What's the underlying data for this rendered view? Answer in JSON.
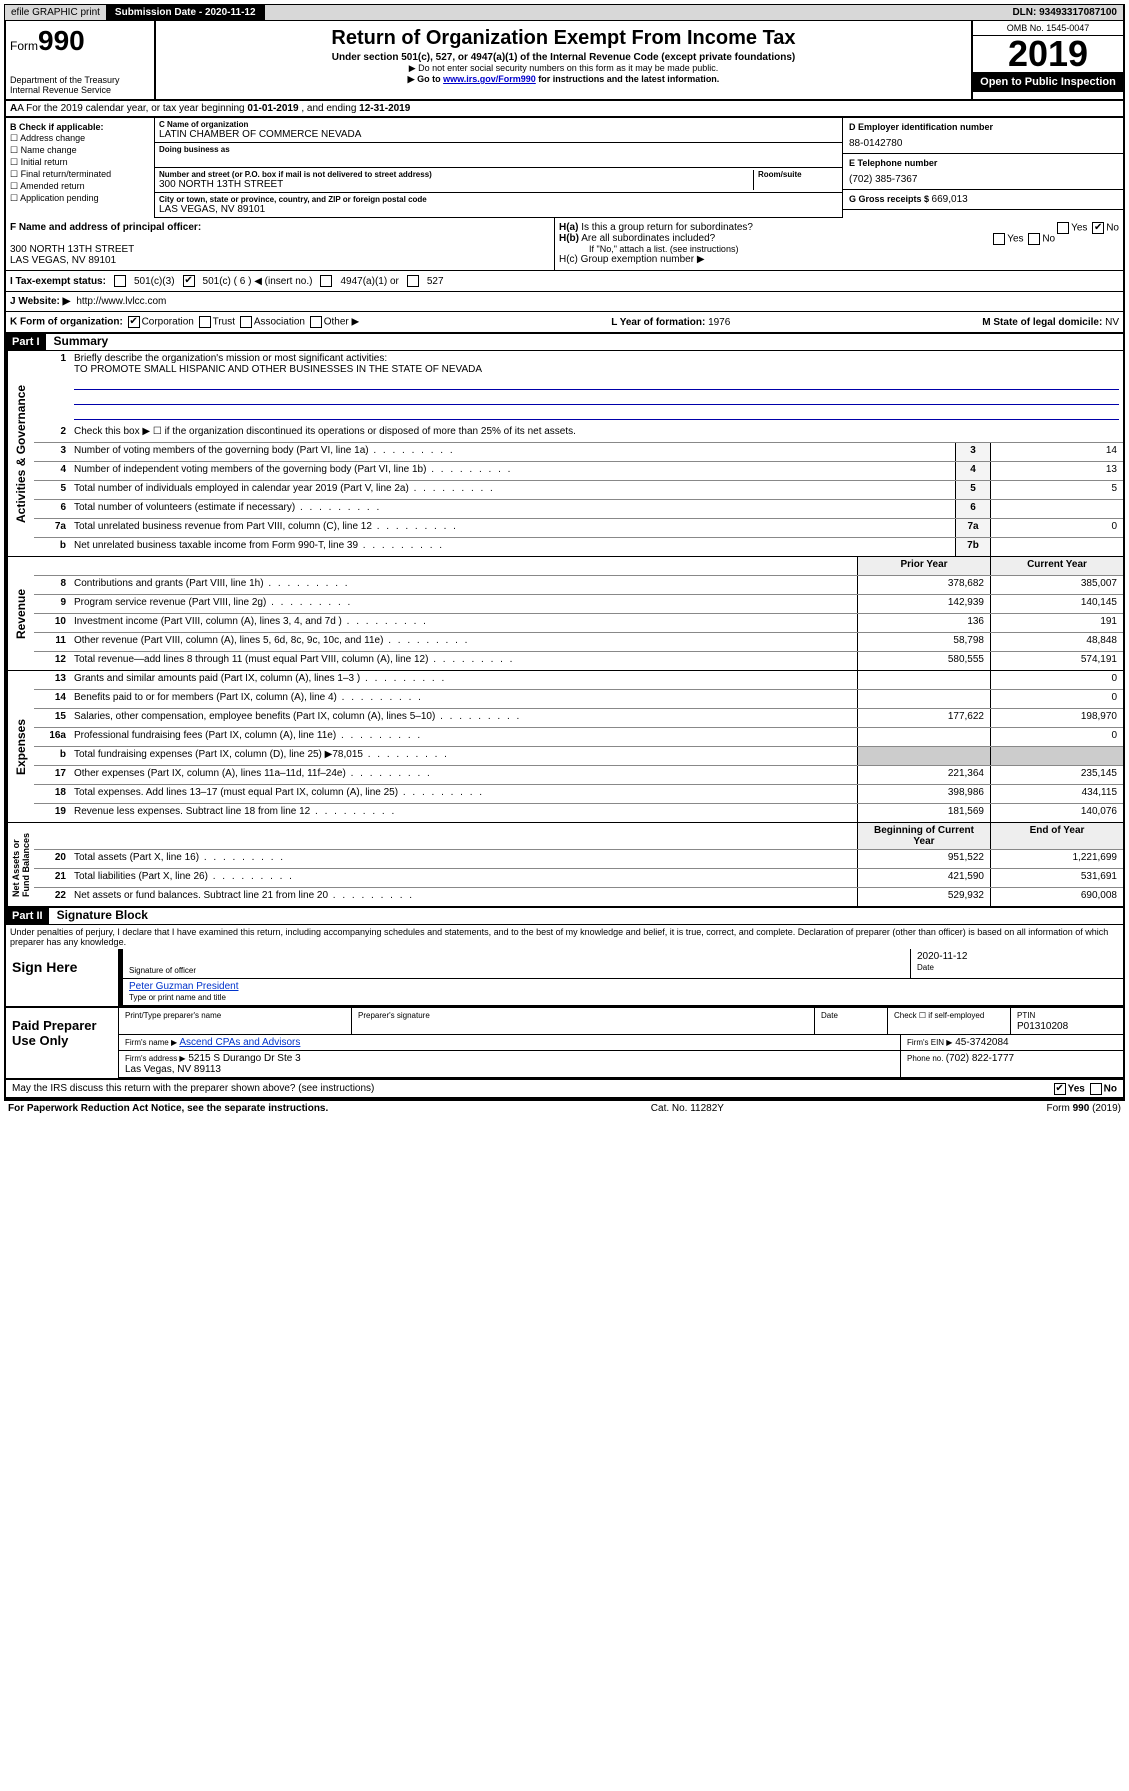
{
  "topbar": {
    "efile": "efile GRAPHIC print",
    "subdate_lbl": "Submission Date - ",
    "subdate": "2020-11-12",
    "dln_lbl": "DLN: ",
    "dln": "93493317087100"
  },
  "header": {
    "form": "Form",
    "formno": "990",
    "dept": "Department of the Treasury\nInternal Revenue Service",
    "title": "Return of Organization Exempt From Income Tax",
    "sub": "Under section 501(c), 527, or 4947(a)(1) of the Internal Revenue Code (except private foundations)",
    "note1": "▶ Do not enter social security numbers on this form as it may be made public.",
    "note2_pre": "▶ Go to ",
    "note2_link": "www.irs.gov/Form990",
    "note2_post": " for instructions and the latest information.",
    "omb": "OMB No. 1545-0047",
    "year": "2019",
    "open": "Open to Public Inspection"
  },
  "rowA": {
    "text_pre": "A For the 2019 calendar year, or tax year beginning ",
    "begin": "01-01-2019",
    "mid": " , and ending ",
    "end": "12-31-2019"
  },
  "colB": {
    "lbl": "B Check if applicable:",
    "opts": [
      "Address change",
      "Name change",
      "Initial return",
      "Final return/terminated",
      "Amended return",
      "Application pending"
    ]
  },
  "colC": {
    "name_lbl": "C Name of organization",
    "name": "LATIN CHAMBER OF COMMERCE NEVADA",
    "dba_lbl": "Doing business as",
    "addr_lbl": "Number and street (or P.O. box if mail is not delivered to street address)",
    "room_lbl": "Room/suite",
    "addr": "300 NORTH 13TH STREET",
    "city_lbl": "City or town, state or province, country, and ZIP or foreign postal code",
    "city": "LAS VEGAS, NV  89101"
  },
  "colD": {
    "lbl": "D Employer identification number",
    "val": "88-0142780",
    "tel_lbl": "E Telephone number",
    "tel": "(702) 385-7367",
    "gross_lbl": "G Gross receipts $ ",
    "gross": "669,013"
  },
  "rowF": {
    "lbl": "F  Name and address of principal officer:",
    "addr1": "300 NORTH 13TH STREET",
    "addr2": "LAS VEGAS, NV  89101"
  },
  "rowH": {
    "ha": "H(a)  Is this a group return for subordinates?",
    "hb": "H(b)  Are all subordinates included?",
    "hb_note": "If \"No,\" attach a list. (see instructions)",
    "hc": "H(c)  Group exemption number ▶"
  },
  "rowI": {
    "lbl": "I   Tax-exempt status:",
    "o1": "501(c)(3)",
    "o2": "501(c) ( 6 ) ◀ (insert no.)",
    "o3": "4947(a)(1) or",
    "o4": "527"
  },
  "rowJ": {
    "lbl": "J   Website: ▶",
    "url": "http://www.lvlcc.com"
  },
  "rowK": {
    "lbl": "K Form of organization:",
    "o1": "Corporation",
    "o2": "Trust",
    "o3": "Association",
    "o4": "Other ▶",
    "l_lbl": "L Year of formation: ",
    "l_val": "1976",
    "m_lbl": "M State of legal domicile: ",
    "m_val": "NV"
  },
  "partI": {
    "hdr": "Part I",
    "title": "Summary",
    "l1_lbl": "Briefly describe the organization's mission or most significant activities:",
    "l1_val": "TO PROMOTE SMALL HISPANIC AND OTHER BUSINESSES IN THE STATE OF NEVADA",
    "l2": "Check this box ▶ ☐  if the organization discontinued its operations or disposed of more than 25% of its net assets.",
    "lines_gov": [
      {
        "n": "3",
        "d": "Number of voting members of the governing body (Part VI, line 1a)",
        "bn": "3",
        "v": "14"
      },
      {
        "n": "4",
        "d": "Number of independent voting members of the governing body (Part VI, line 1b)",
        "bn": "4",
        "v": "13"
      },
      {
        "n": "5",
        "d": "Total number of individuals employed in calendar year 2019 (Part V, line 2a)",
        "bn": "5",
        "v": "5"
      },
      {
        "n": "6",
        "d": "Total number of volunteers (estimate if necessary)",
        "bn": "6",
        "v": ""
      },
      {
        "n": "7a",
        "d": "Total unrelated business revenue from Part VIII, column (C), line 12",
        "bn": "7a",
        "v": "0"
      },
      {
        "n": "b",
        "d": "Net unrelated business taxable income from Form 990-T, line 39",
        "bn": "7b",
        "v": ""
      }
    ],
    "col_hdr_prior": "Prior Year",
    "col_hdr_curr": "Current Year",
    "lines_rev": [
      {
        "n": "8",
        "d": "Contributions and grants (Part VIII, line 1h)",
        "p": "378,682",
        "c": "385,007"
      },
      {
        "n": "9",
        "d": "Program service revenue (Part VIII, line 2g)",
        "p": "142,939",
        "c": "140,145"
      },
      {
        "n": "10",
        "d": "Investment income (Part VIII, column (A), lines 3, 4, and 7d )",
        "p": "136",
        "c": "191"
      },
      {
        "n": "11",
        "d": "Other revenue (Part VIII, column (A), lines 5, 6d, 8c, 9c, 10c, and 11e)",
        "p": "58,798",
        "c": "48,848"
      },
      {
        "n": "12",
        "d": "Total revenue—add lines 8 through 11 (must equal Part VIII, column (A), line 12)",
        "p": "580,555",
        "c": "574,191"
      }
    ],
    "lines_exp": [
      {
        "n": "13",
        "d": "Grants and similar amounts paid (Part IX, column (A), lines 1–3 )",
        "p": "",
        "c": "0"
      },
      {
        "n": "14",
        "d": "Benefits paid to or for members (Part IX, column (A), line 4)",
        "p": "",
        "c": "0"
      },
      {
        "n": "15",
        "d": "Salaries, other compensation, employee benefits (Part IX, column (A), lines 5–10)",
        "p": "177,622",
        "c": "198,970"
      },
      {
        "n": "16a",
        "d": "Professional fundraising fees (Part IX, column (A), line 11e)",
        "p": "",
        "c": "0"
      },
      {
        "n": "b",
        "d": "Total fundraising expenses (Part IX, column (D), line 25) ▶78,015",
        "p": "—",
        "c": "—"
      },
      {
        "n": "17",
        "d": "Other expenses (Part IX, column (A), lines 11a–11d, 11f–24e)",
        "p": "221,364",
        "c": "235,145"
      },
      {
        "n": "18",
        "d": "Total expenses. Add lines 13–17 (must equal Part IX, column (A), line 25)",
        "p": "398,986",
        "c": "434,115"
      },
      {
        "n": "19",
        "d": "Revenue less expenses. Subtract line 18 from line 12",
        "p": "181,569",
        "c": "140,076"
      }
    ],
    "col_hdr_begin": "Beginning of Current Year",
    "col_hdr_end": "End of Year",
    "lines_na": [
      {
        "n": "20",
        "d": "Total assets (Part X, line 16)",
        "p": "951,522",
        "c": "1,221,699"
      },
      {
        "n": "21",
        "d": "Total liabilities (Part X, line 26)",
        "p": "421,590",
        "c": "531,691"
      },
      {
        "n": "22",
        "d": "Net assets or fund balances. Subtract line 21 from line 20",
        "p": "529,932",
        "c": "690,008"
      }
    ],
    "vlabels": {
      "gov": "Activities & Governance",
      "rev": "Revenue",
      "exp": "Expenses",
      "na": "Net Assets or\nFund Balances"
    }
  },
  "partII": {
    "hdr": "Part II",
    "title": "Signature Block",
    "decl": "Under penalties of perjury, I declare that I have examined this return, including accompanying schedules and statements, and to the best of my knowledge and belief, it is true, correct, and complete. Declaration of preparer (other than officer) is based on all information of which preparer has any knowledge.",
    "sign_lbl": "Sign Here",
    "sig_date": "2020-11-12",
    "sig_officer_lbl": "Signature of officer",
    "date_lbl": "Date",
    "officer_name": "Peter Guzman President",
    "officer_name_lbl": "Type or print name and title",
    "paid_lbl": "Paid Preparer Use Only",
    "prep_name_lbl": "Print/Type preparer's name",
    "prep_sig_lbl": "Preparer's signature",
    "prep_date_lbl": "Date",
    "self_emp": "Check ☐ if self-employed",
    "ptin_lbl": "PTIN",
    "ptin": "P01310208",
    "firm_name_lbl": "Firm's name   ▶",
    "firm_name": "Ascend CPAs and Advisors",
    "firm_ein_lbl": "Firm's EIN ▶",
    "firm_ein": "45-3742084",
    "firm_addr_lbl": "Firm's address ▶",
    "firm_addr": "5215 S Durango Dr Ste 3\nLas Vegas, NV  89113",
    "phone_lbl": "Phone no. ",
    "phone": "(702) 822-1777",
    "discuss": "May the IRS discuss this return with the preparer shown above? (see instructions)"
  },
  "footer": {
    "pra": "For Paperwork Reduction Act Notice, see the separate instructions.",
    "cat": "Cat. No. 11282Y",
    "form": "Form 990 (2019)"
  }
}
